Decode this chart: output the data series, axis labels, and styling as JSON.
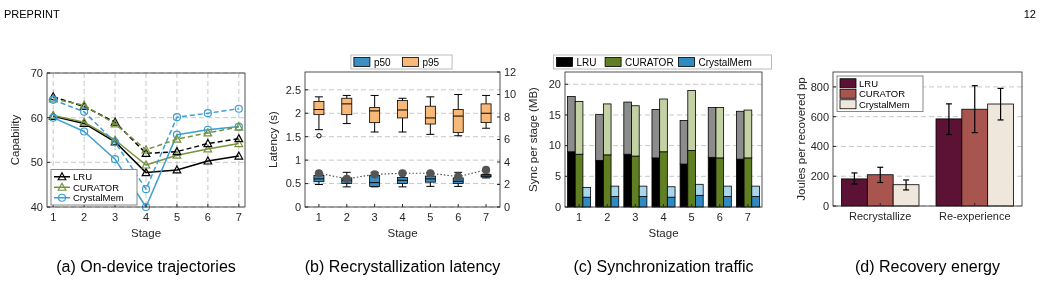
{
  "chart_data": [
    {
      "type": "line",
      "title": "(a) On-device trajectories",
      "xlabel": "Stage",
      "ylabel": "Capability",
      "annotations": [
        "PREPRINT",
        "12"
      ],
      "x": [
        1,
        2,
        3,
        4,
        5,
        6,
        7
      ],
      "xlim": [
        0.8,
        7.2
      ],
      "xticks": [
        1,
        2,
        3,
        4,
        5,
        6,
        7
      ],
      "ylim": [
        40,
        70
      ],
      "yticks": [
        40,
        50,
        60,
        70
      ],
      "grid": true,
      "legend": "bottom left",
      "series": [
        {
          "name": "LRU",
          "color": "#000000",
          "marker": "triangle",
          "line_style": "solid",
          "values": [
            60.3,
            58.7,
            54.6,
            47.7,
            48.3,
            50.3,
            51.4
          ]
        },
        {
          "name": "CURATOR",
          "color": "#77933c",
          "marker": "triangle",
          "line_style": "solid",
          "values": [
            60.5,
            59.0,
            55.0,
            49.4,
            51.6,
            53.0,
            54.2
          ]
        },
        {
          "name": "CrystalMem",
          "color": "#3c9fd0",
          "marker": "circle",
          "line_style": "solid",
          "values": [
            60.0,
            56.9,
            50.7,
            40.0,
            56.2,
            57.3,
            58.0
          ]
        },
        {
          "color": "#000000",
          "marker": "triangle",
          "line_style": "dashed",
          "values": [
            64.7,
            62.5,
            59.0,
            52.0,
            52.4,
            54.2,
            55.3
          ]
        },
        {
          "color": "#77933c",
          "marker": "triangle",
          "line_style": "dashed",
          "values": [
            64.2,
            62.8,
            58.6,
            52.8,
            55.2,
            56.6,
            57.9
          ]
        },
        {
          "color": "#3c9fd0",
          "marker": "circle",
          "line_style": "dashed",
          "values": [
            64.0,
            61.3,
            54.5,
            44.0,
            60.1,
            61.0,
            62.0
          ]
        }
      ]
    },
    {
      "type": "box",
      "title": "(b) Recrystallization latency",
      "xlabel": "Stage",
      "ylabel": "Latency (s)",
      "categories": [
        "1",
        "2",
        "3",
        "4",
        "5",
        "6",
        "7"
      ],
      "ylim": [
        0,
        2.88
      ],
      "yticks": [
        0,
        0.5,
        1,
        1.5,
        2,
        2.5
      ],
      "y2lim": [
        0,
        12
      ],
      "y2ticks": [
        0,
        2,
        4,
        6,
        8,
        10,
        12
      ],
      "grid": "y",
      "legend": "top",
      "series": [
        {
          "name": "p50",
          "color": "#3a8fc4",
          "boxes": [
            {
              "low": 0.48,
              "q1": 0.54,
              "median": 0.6,
              "q3": 0.67,
              "high": 0.72
            },
            {
              "low": 0.43,
              "q1": 0.5,
              "median": 0.57,
              "q3": 0.62,
              "high": 0.74
            },
            {
              "low": 0.43,
              "q1": 0.44,
              "median": 0.52,
              "q3": 0.67,
              "high": 0.74
            },
            {
              "low": 0.43,
              "q1": 0.5,
              "median": 0.57,
              "q3": 0.63,
              "high": 0.73
            },
            {
              "low": 0.44,
              "q1": 0.53,
              "median": 0.6,
              "q3": 0.66,
              "high": 0.73
            },
            {
              "low": 0.44,
              "q1": 0.5,
              "median": 0.55,
              "q3": 0.62,
              "high": 0.74
            },
            {
              "low": 0.62,
              "q1": 0.64,
              "median": 0.66,
              "q3": 0.69,
              "high": 0.7
            }
          ]
        },
        {
          "name": "p95",
          "color": "#f7b878",
          "boxes": [
            {
              "low": 1.65,
              "q1": 1.97,
              "median": 2.08,
              "q3": 2.25,
              "high": 2.35,
              "outliers": [
                1.52
              ]
            },
            {
              "low": 1.78,
              "q1": 1.97,
              "median": 2.2,
              "q3": 2.32,
              "high": 2.38
            },
            {
              "low": 1.6,
              "q1": 1.8,
              "median": 2.05,
              "q3": 2.12,
              "high": 2.38
            },
            {
              "low": 1.6,
              "q1": 1.9,
              "median": 2.07,
              "q3": 2.27,
              "high": 2.32
            },
            {
              "low": 1.55,
              "q1": 1.77,
              "median": 1.9,
              "q3": 2.15,
              "high": 2.35
            },
            {
              "low": 1.52,
              "q1": 1.59,
              "median": 1.94,
              "q3": 2.08,
              "high": 2.4
            },
            {
              "low": 1.68,
              "q1": 1.8,
              "median": 2.0,
              "q3": 2.2,
              "high": 2.38
            }
          ]
        },
        {
          "type": "line",
          "axis": "y2",
          "color": "#555555",
          "marker": "circle",
          "line_style": "dotted",
          "values": [
            3.0,
            2.5,
            2.9,
            3.0,
            3.0,
            2.7,
            3.3
          ]
        }
      ]
    },
    {
      "type": "bar",
      "title": "(c) Synchronization traffic",
      "xlabel": "Stage",
      "ylabel": "Sync per stage (MB)",
      "categories": [
        "1",
        "2",
        "3",
        "4",
        "5",
        "6",
        "7"
      ],
      "ylim": [
        0,
        22
      ],
      "yticks": [
        0,
        5,
        10,
        15,
        20
      ],
      "grid": "y",
      "legend": "top",
      "series": [
        {
          "name": "LRU",
          "color": "#000000",
          "base": [
            0,
            0,
            0,
            0,
            0,
            0,
            0
          ],
          "values": [
            9.0,
            7.6,
            8.6,
            8.0,
            7.0,
            8.1,
            7.8
          ]
        },
        {
          "color": "#8c8c8c",
          "base": [
            9.0,
            7.6,
            8.6,
            8.0,
            7.0,
            8.1,
            7.8
          ],
          "values": [
            9.0,
            7.5,
            8.5,
            7.9,
            7.1,
            8.1,
            7.8
          ]
        },
        {
          "name": "CURATOR",
          "color": "#5f7f22",
          "base": [
            0,
            0,
            0,
            0,
            0,
            0,
            0
          ],
          "values": [
            8.6,
            8.5,
            8.3,
            9.0,
            9.2,
            8.0,
            8.0
          ]
        },
        {
          "color": "#c3d1a5",
          "base": [
            8.6,
            8.5,
            8.3,
            9.0,
            9.2,
            8.0,
            8.0
          ],
          "values": [
            8.6,
            8.3,
            8.2,
            8.6,
            9.8,
            8.2,
            7.8
          ]
        },
        {
          "name": "CrystalMem",
          "color": "#2f8ac4",
          "base": [
            0,
            0,
            0,
            0,
            0,
            0,
            0
          ],
          "values": [
            1.6,
            1.7,
            1.7,
            1.6,
            1.9,
            1.7,
            1.7
          ]
        },
        {
          "color": "#a9d5ec",
          "base": [
            1.6,
            1.7,
            1.7,
            1.6,
            1.9,
            1.7,
            1.7
          ],
          "values": [
            1.6,
            1.7,
            1.7,
            1.7,
            1.8,
            1.7,
            1.7
          ]
        }
      ]
    },
    {
      "type": "bar",
      "title": "(d) Recovery energy",
      "ylabel": "Joules per recovered pp",
      "categories": [
        "Recrystallize",
        "Re-experience"
      ],
      "ylim": [
        0,
        900
      ],
      "yticks": [
        0,
        200,
        400,
        600,
        800
      ],
      "grid": "y",
      "legend": "top left",
      "series": [
        {
          "name": "LRU",
          "color": "#5c1234",
          "values": [
            182,
            585
          ],
          "errors": [
            [
              148,
              222
            ],
            [
              480,
              686
            ]
          ]
        },
        {
          "name": "CURATOR",
          "color": "#a8554f",
          "values": [
            210,
            650
          ],
          "errors": [
            [
              158,
              260
            ],
            [
              493,
              808
            ]
          ]
        },
        {
          "name": "CrystalMem",
          "color": "#efe6dc",
          "values": [
            143,
            685
          ],
          "errors": [
            [
              108,
              175
            ],
            [
              578,
              790
            ]
          ]
        }
      ]
    }
  ]
}
